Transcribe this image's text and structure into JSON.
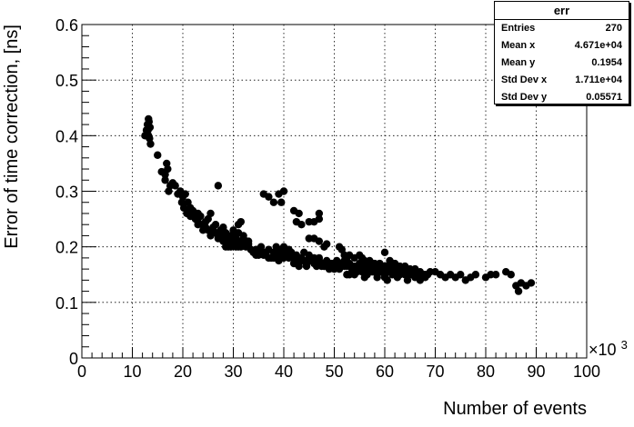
{
  "chart_data": {
    "type": "scatter",
    "xlabel": "Number of events",
    "ylabel": "Error of time correction, [ns]",
    "x_exponent_label": "×10",
    "x_exponent_power": "3",
    "xlim": [
      0,
      100
    ],
    "ylim": [
      0,
      0.6
    ],
    "x_ticks": [
      "0",
      "10",
      "20",
      "30",
      "40",
      "50",
      "60",
      "70",
      "80",
      "90",
      "100"
    ],
    "y_ticks": [
      "0",
      "0.1",
      "0.2",
      "0.3",
      "0.4",
      "0.5",
      "0.6"
    ],
    "grid": true,
    "marker_color": "#000000",
    "points": [
      [
        12.5,
        0.4
      ],
      [
        12.8,
        0.41
      ],
      [
        13,
        0.42
      ],
      [
        13.2,
        0.43
      ],
      [
        13.3,
        0.425
      ],
      [
        13.1,
        0.41
      ],
      [
        13.4,
        0.395
      ],
      [
        13.6,
        0.385
      ],
      [
        13.2,
        0.4
      ],
      [
        13.5,
        0.415
      ],
      [
        15,
        0.365
      ],
      [
        15.8,
        0.335
      ],
      [
        16.5,
        0.33
      ],
      [
        16.8,
        0.35
      ],
      [
        17,
        0.34
      ],
      [
        16.5,
        0.32
      ],
      [
        17.5,
        0.31
      ],
      [
        17.2,
        0.3
      ],
      [
        18,
        0.315
      ],
      [
        18.5,
        0.31
      ],
      [
        19,
        0.295
      ],
      [
        19.5,
        0.3
      ],
      [
        20,
        0.29
      ],
      [
        20.5,
        0.295
      ],
      [
        19.8,
        0.28
      ],
      [
        20.2,
        0.27
      ],
      [
        21,
        0.28
      ],
      [
        20.8,
        0.26
      ],
      [
        21.5,
        0.27
      ],
      [
        22,
        0.265
      ],
      [
        21.5,
        0.255
      ],
      [
        22.5,
        0.25
      ],
      [
        23,
        0.26
      ],
      [
        23.5,
        0.255
      ],
      [
        23,
        0.24
      ],
      [
        24,
        0.24
      ],
      [
        24.5,
        0.235
      ],
      [
        25,
        0.25
      ],
      [
        25.5,
        0.26
      ],
      [
        25,
        0.23
      ],
      [
        26,
        0.235
      ],
      [
        26.5,
        0.24
      ],
      [
        27,
        0.31
      ],
      [
        27,
        0.225
      ],
      [
        27.5,
        0.23
      ],
      [
        28,
        0.235
      ],
      [
        28.5,
        0.22
      ],
      [
        25.5,
        0.22
      ],
      [
        24.5,
        0.245
      ],
      [
        26.5,
        0.225
      ],
      [
        28,
        0.21
      ],
      [
        28.5,
        0.225
      ],
      [
        29,
        0.21
      ],
      [
        29.5,
        0.22
      ],
      [
        30,
        0.23
      ],
      [
        30.5,
        0.215
      ],
      [
        31,
        0.225
      ],
      [
        31,
        0.24
      ],
      [
        31.5,
        0.245
      ],
      [
        32,
        0.215
      ],
      [
        29,
        0.2
      ],
      [
        30,
        0.205
      ],
      [
        31,
        0.2
      ],
      [
        32,
        0.21
      ],
      [
        32.5,
        0.2
      ],
      [
        33,
        0.21
      ],
      [
        33.5,
        0.195
      ],
      [
        30,
        0.22
      ],
      [
        31.5,
        0.2
      ],
      [
        29.5,
        0.2
      ],
      [
        34,
        0.19
      ],
      [
        34.5,
        0.185
      ],
      [
        35,
        0.195
      ],
      [
        35.5,
        0.2
      ],
      [
        36,
        0.19
      ],
      [
        36.5,
        0.185
      ],
      [
        37,
        0.195
      ],
      [
        37.5,
        0.18
      ],
      [
        38,
        0.19
      ],
      [
        38.5,
        0.185
      ],
      [
        39,
        0.195
      ],
      [
        39.5,
        0.19
      ],
      [
        40,
        0.2
      ],
      [
        40.5,
        0.185
      ],
      [
        41,
        0.195
      ],
      [
        41.5,
        0.19
      ],
      [
        42,
        0.18
      ],
      [
        42.5,
        0.185
      ],
      [
        43,
        0.175
      ],
      [
        43.5,
        0.18
      ],
      [
        36,
        0.295
      ],
      [
        37,
        0.29
      ],
      [
        38,
        0.28
      ],
      [
        39,
        0.295
      ],
      [
        40,
        0.3
      ],
      [
        39.5,
        0.28
      ],
      [
        42,
        0.265
      ],
      [
        42.5,
        0.245
      ],
      [
        43,
        0.26
      ],
      [
        43.5,
        0.24
      ],
      [
        45,
        0.245
      ],
      [
        46,
        0.245
      ],
      [
        47,
        0.26
      ],
      [
        47,
        0.25
      ],
      [
        45,
        0.215
      ],
      [
        46,
        0.215
      ],
      [
        47,
        0.21
      ],
      [
        48,
        0.2
      ],
      [
        48.5,
        0.205
      ],
      [
        44,
        0.175
      ],
      [
        44.5,
        0.17
      ],
      [
        45,
        0.18
      ],
      [
        45.5,
        0.175
      ],
      [
        46,
        0.17
      ],
      [
        46.5,
        0.175
      ],
      [
        47,
        0.18
      ],
      [
        47.5,
        0.165
      ],
      [
        48,
        0.17
      ],
      [
        48.5,
        0.175
      ],
      [
        49,
        0.17
      ],
      [
        49.5,
        0.165
      ],
      [
        50,
        0.17
      ],
      [
        50.5,
        0.175
      ],
      [
        51,
        0.165
      ],
      [
        51.5,
        0.17
      ],
      [
        52,
        0.175
      ],
      [
        52.5,
        0.165
      ],
      [
        53,
        0.17
      ],
      [
        53.5,
        0.16
      ],
      [
        54,
        0.165
      ],
      [
        51,
        0.2
      ],
      [
        51.5,
        0.195
      ],
      [
        52,
        0.185
      ],
      [
        52.5,
        0.18
      ],
      [
        53,
        0.185
      ],
      [
        54,
        0.18
      ],
      [
        55,
        0.185
      ],
      [
        55.5,
        0.18
      ],
      [
        56,
        0.175
      ],
      [
        57,
        0.17
      ],
      [
        54,
        0.15
      ],
      [
        54.5,
        0.155
      ],
      [
        55,
        0.16
      ],
      [
        55.5,
        0.165
      ],
      [
        56,
        0.155
      ],
      [
        56.5,
        0.15
      ],
      [
        57,
        0.16
      ],
      [
        57.5,
        0.155
      ],
      [
        58,
        0.16
      ],
      [
        58.5,
        0.15
      ],
      [
        59,
        0.155
      ],
      [
        59.5,
        0.16
      ],
      [
        60,
        0.15
      ],
      [
        60.5,
        0.155
      ],
      [
        61,
        0.16
      ],
      [
        61.5,
        0.15
      ],
      [
        62,
        0.155
      ],
      [
        62.5,
        0.16
      ],
      [
        63,
        0.15
      ],
      [
        63.5,
        0.155
      ],
      [
        64,
        0.15
      ],
      [
        64.5,
        0.155
      ],
      [
        65,
        0.16
      ],
      [
        65.5,
        0.15
      ],
      [
        66,
        0.155
      ],
      [
        66.5,
        0.15
      ],
      [
        67,
        0.155
      ],
      [
        67.5,
        0.15
      ],
      [
        68,
        0.145
      ],
      [
        68.5,
        0.15
      ],
      [
        60,
        0.19
      ],
      [
        61,
        0.175
      ],
      [
        62,
        0.17
      ],
      [
        59,
        0.165
      ],
      [
        58,
        0.17
      ],
      [
        57,
        0.165
      ],
      [
        63,
        0.165
      ],
      [
        61.5,
        0.165
      ],
      [
        64,
        0.165
      ],
      [
        60.5,
        0.14
      ],
      [
        62.5,
        0.145
      ],
      [
        64.5,
        0.14
      ],
      [
        66,
        0.145
      ],
      [
        67,
        0.14
      ],
      [
        68,
        0.15
      ],
      [
        69,
        0.155
      ],
      [
        70,
        0.155
      ],
      [
        71,
        0.15
      ],
      [
        72,
        0.145
      ],
      [
        73,
        0.15
      ],
      [
        74,
        0.145
      ],
      [
        75,
        0.15
      ],
      [
        76,
        0.14
      ],
      [
        77,
        0.145
      ],
      [
        78,
        0.15
      ],
      [
        80,
        0.145
      ],
      [
        81,
        0.15
      ],
      [
        82,
        0.15
      ],
      [
        84,
        0.155
      ],
      [
        85,
        0.15
      ],
      [
        86,
        0.13
      ],
      [
        86.5,
        0.12
      ],
      [
        87,
        0.135
      ],
      [
        88,
        0.13
      ],
      [
        89,
        0.135
      ],
      [
        53,
        0.15
      ],
      [
        52.5,
        0.15
      ],
      [
        56,
        0.145
      ],
      [
        58.5,
        0.145
      ],
      [
        60,
        0.145
      ],
      [
        42,
        0.17
      ],
      [
        43,
        0.165
      ],
      [
        41,
        0.18
      ],
      [
        40,
        0.18
      ],
      [
        39,
        0.175
      ],
      [
        38,
        0.18
      ],
      [
        37,
        0.18
      ],
      [
        36,
        0.185
      ],
      [
        35,
        0.185
      ],
      [
        34,
        0.19
      ],
      [
        44,
        0.19
      ],
      [
        45,
        0.185
      ],
      [
        46,
        0.18
      ],
      [
        47,
        0.175
      ],
      [
        48,
        0.165
      ],
      [
        49,
        0.16
      ],
      [
        50,
        0.16
      ],
      [
        51,
        0.16
      ],
      [
        55,
        0.17
      ],
      [
        56,
        0.165
      ],
      [
        57,
        0.175
      ],
      [
        58,
        0.165
      ],
      [
        59,
        0.17
      ],
      [
        60,
        0.165
      ],
      [
        61,
        0.17
      ],
      [
        62,
        0.165
      ],
      [
        63,
        0.16
      ],
      [
        64,
        0.155
      ],
      [
        65,
        0.15
      ],
      [
        66,
        0.16
      ],
      [
        33,
        0.205
      ],
      [
        32,
        0.22
      ],
      [
        28,
        0.22
      ],
      [
        27,
        0.215
      ],
      [
        26,
        0.23
      ],
      [
        24,
        0.23
      ],
      [
        23,
        0.245
      ],
      [
        22,
        0.255
      ],
      [
        21,
        0.265
      ],
      [
        30,
        0.21
      ],
      [
        31,
        0.21
      ],
      [
        29,
        0.215
      ],
      [
        28.5,
        0.2
      ],
      [
        30.5,
        0.2
      ],
      [
        32.5,
        0.21
      ],
      [
        33,
        0.2
      ],
      [
        34.5,
        0.195
      ],
      [
        35,
        0.19
      ],
      [
        36.5,
        0.19
      ],
      [
        38.5,
        0.2
      ],
      [
        39,
        0.185
      ],
      [
        40.5,
        0.19
      ],
      [
        41.5,
        0.185
      ],
      [
        43,
        0.17
      ],
      [
        44.5,
        0.165
      ],
      [
        46.5,
        0.165
      ],
      [
        48,
        0.165
      ],
      [
        49.5,
        0.17
      ],
      [
        50.5,
        0.165
      ],
      [
        52,
        0.165
      ],
      [
        53.5,
        0.165
      ],
      [
        54.5,
        0.16
      ],
      [
        55.5,
        0.155
      ],
      [
        57.5,
        0.16
      ],
      [
        59.5,
        0.155
      ],
      [
        61,
        0.155
      ],
      [
        62,
        0.16
      ],
      [
        63.5,
        0.16
      ],
      [
        65,
        0.155
      ],
      [
        67,
        0.15
      ]
    ]
  },
  "stats": {
    "title": "err",
    "rows": [
      {
        "label": "Entries",
        "value": "270"
      },
      {
        "label": "Mean x",
        "value": "4.671e+04"
      },
      {
        "label": "Mean y",
        "value": "0.1954"
      },
      {
        "label": "Std Dev x",
        "value": "1.711e+04"
      },
      {
        "label": "Std Dev y",
        "value": "0.05571"
      }
    ]
  }
}
